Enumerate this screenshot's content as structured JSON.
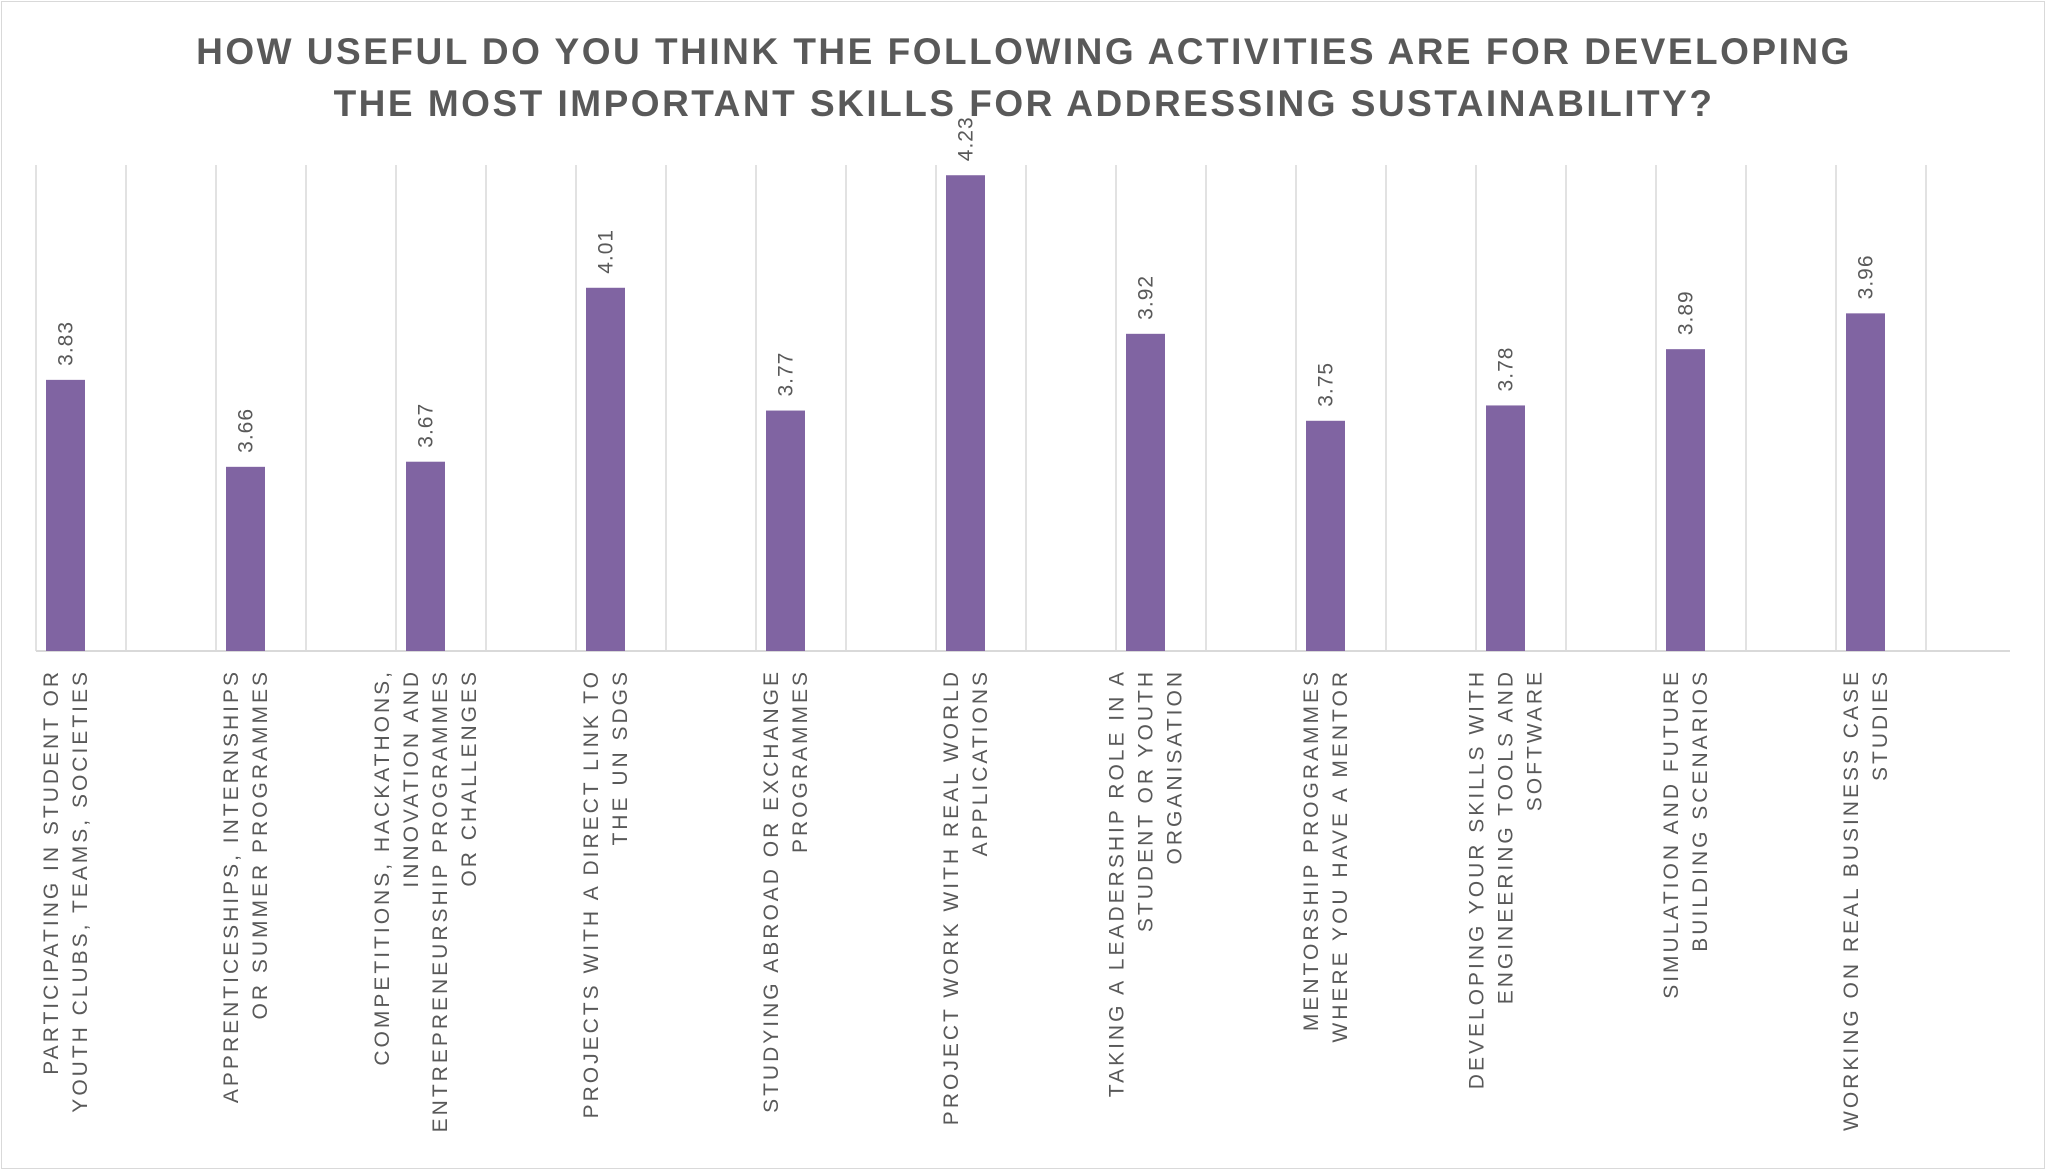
{
  "chart_data": {
    "type": "bar",
    "title_lines": [
      "HOW USEFUL DO YOU THINK THE FOLLOWING ACTIVITIES ARE FOR DEVELOPING",
      "THE MOST IMPORTANT SKILLS FOR ADDRESSING SUSTAINABILITY?"
    ],
    "categories": [
      [
        "PARTICIPATING IN STUDENT OR",
        "YOUTH CLUBS, TEAMS, SOCIETIES"
      ],
      [
        "APPRENTICESHIPS, INTERNSHIPS",
        "OR SUMMER PROGRAMMES"
      ],
      [
        "COMPETITIONS, HACKATHONS,",
        "INNOVATION AND",
        "ENTREPRENEURSHIP PROGRAMMES",
        "OR CHALLENGES"
      ],
      [
        "PROJECTS WITH A DIRECT LINK TO",
        "THE UN SDGS"
      ],
      [
        "STUDYING ABROAD OR EXCHANGE",
        "PROGRAMMES"
      ],
      [
        "PROJECT WORK WITH REAL WORLD",
        "APPLICATIONS"
      ],
      [
        "TAKING A LEADERSHIP ROLE IN A",
        "STUDENT OR YOUTH",
        "ORGANISATION"
      ],
      [
        "MENTORSHIP PROGRAMMES",
        "WHERE YOU HAVE A MENTOR"
      ],
      [
        "DEVELOPING YOUR SKILLS WITH",
        "ENGINEERING TOOLS AND",
        "SOFTWARE"
      ],
      [
        "SIMULATION AND FUTURE",
        "BUILDING SCENARIOS"
      ],
      [
        "WORKING ON REAL BUSINESS CASE",
        "STUDIES"
      ]
    ],
    "values": [
      3.83,
      3.66,
      3.67,
      4.01,
      3.77,
      4.23,
      3.92,
      3.75,
      3.78,
      3.89,
      3.96
    ],
    "value_labels": [
      "3.83",
      "3.66",
      "3.67",
      "4.01",
      "3.77",
      "4.23",
      "3.92",
      "3.75",
      "3.78",
      "3.89",
      "3.96"
    ],
    "ylim": [
      3.3,
      4.25
    ],
    "grid": "vertical",
    "legend": "none",
    "xlabel": "",
    "ylabel": "",
    "colors": {
      "bar": "#8064a2",
      "grid": "#d9d9d9",
      "text": "#595959",
      "axis": "#d9d9d9"
    }
  }
}
